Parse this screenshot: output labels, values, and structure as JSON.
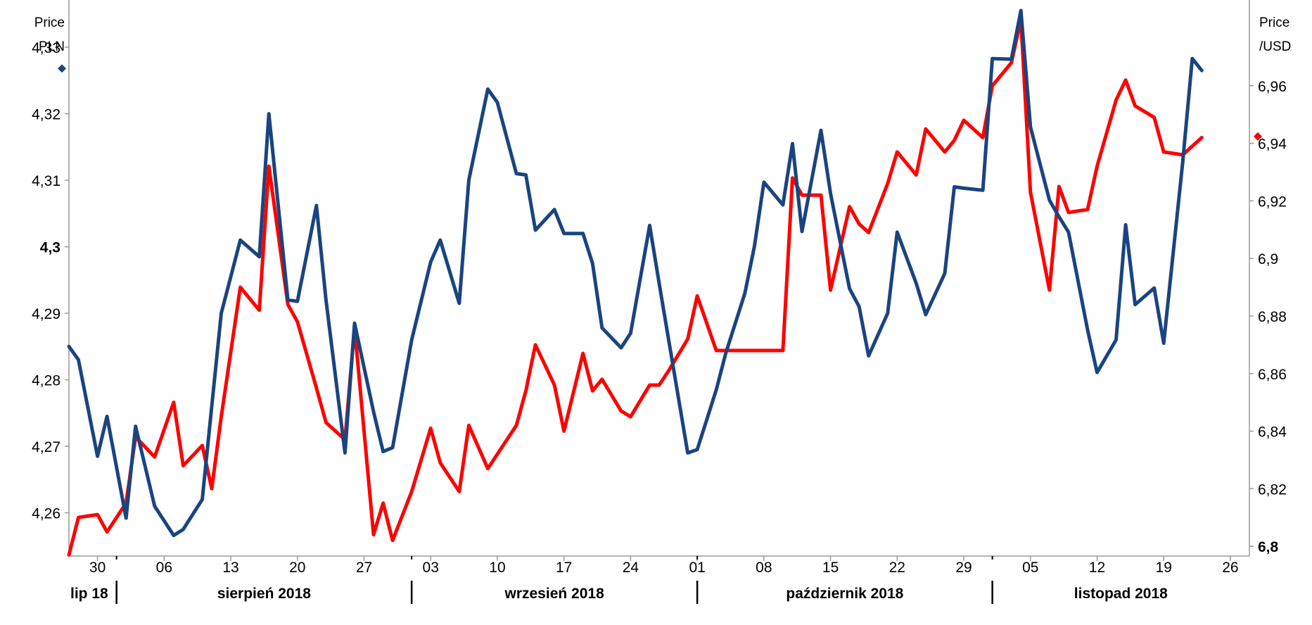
{
  "chart_data": {
    "type": "line",
    "left_axis": {
      "title_lines": [
        "Price",
        "PLN"
      ],
      "range": [
        4.2535,
        4.3371
      ],
      "ticks": [
        {
          "value": 4.26,
          "label": "4,26",
          "bold": false
        },
        {
          "value": 4.27,
          "label": "4,27",
          "bold": false
        },
        {
          "value": 4.28,
          "label": "4,28",
          "bold": false
        },
        {
          "value": 4.29,
          "label": "4,29",
          "bold": false
        },
        {
          "value": 4.3,
          "label": "4,3",
          "bold": true
        },
        {
          "value": 4.31,
          "label": "4,31",
          "bold": false
        },
        {
          "value": 4.32,
          "label": "4,32",
          "bold": false
        },
        {
          "value": 4.33,
          "label": "4,33",
          "bold": false
        }
      ]
    },
    "right_axis": {
      "title_lines": [
        "Price",
        "/USD"
      ],
      "range": [
        6.7966,
        6.9898
      ],
      "ticks": [
        {
          "value": 6.8,
          "label": "6,8",
          "bold": true
        },
        {
          "value": 6.82,
          "label": "6,82",
          "bold": false
        },
        {
          "value": 6.84,
          "label": "6,84",
          "bold": false
        },
        {
          "value": 6.86,
          "label": "6,86",
          "bold": false
        },
        {
          "value": 6.88,
          "label": "6,88",
          "bold": false
        },
        {
          "value": 6.9,
          "label": "6,9",
          "bold": false
        },
        {
          "value": 6.92,
          "label": "6,92",
          "bold": false
        },
        {
          "value": 6.94,
          "label": "6,94",
          "bold": false
        },
        {
          "value": 6.96,
          "label": "6,96",
          "bold": false
        }
      ]
    },
    "x_axis": {
      "start": "2018-07-27",
      "end": "2018-11-28",
      "day_ticks": [
        {
          "date": "2018-07-30",
          "label": "30"
        },
        {
          "date": "2018-08-06",
          "label": "06"
        },
        {
          "date": "2018-08-13",
          "label": "13"
        },
        {
          "date": "2018-08-20",
          "label": "20"
        },
        {
          "date": "2018-08-27",
          "label": "27"
        },
        {
          "date": "2018-09-03",
          "label": "03"
        },
        {
          "date": "2018-09-10",
          "label": "10"
        },
        {
          "date": "2018-09-17",
          "label": "17"
        },
        {
          "date": "2018-09-24",
          "label": "24"
        },
        {
          "date": "2018-10-01",
          "label": "01"
        },
        {
          "date": "2018-10-08",
          "label": "08"
        },
        {
          "date": "2018-10-15",
          "label": "15"
        },
        {
          "date": "2018-10-22",
          "label": "22"
        },
        {
          "date": "2018-10-29",
          "label": "29"
        },
        {
          "date": "2018-11-05",
          "label": "05"
        },
        {
          "date": "2018-11-12",
          "label": "12"
        },
        {
          "date": "2018-11-19",
          "label": "19"
        },
        {
          "date": "2018-11-26",
          "label": "26"
        }
      ],
      "month_boundaries": [
        "2018-08-01",
        "2018-09-01",
        "2018-10-01",
        "2018-11-01"
      ],
      "months": [
        {
          "label": "lip 18",
          "start": "2018-07-27",
          "end": "2018-08-01"
        },
        {
          "label": "sierpień 2018",
          "start": "2018-08-01",
          "end": "2018-09-01"
        },
        {
          "label": "wrzesień 2018",
          "start": "2018-09-01",
          "end": "2018-10-01"
        },
        {
          "label": "październik 2018",
          "start": "2018-10-01",
          "end": "2018-11-01"
        },
        {
          "label": "listopad 2018",
          "start": "2018-11-01",
          "end": "2018-11-28"
        }
      ]
    },
    "series": [
      {
        "axis": "right",
        "color": "#ff0000",
        "points": [
          [
            "2018-07-27",
            6.797
          ],
          [
            "2018-07-28",
            6.81
          ],
          [
            "2018-07-30",
            6.811
          ],
          [
            "2018-07-31",
            6.805
          ],
          [
            "2018-08-02",
            6.815
          ],
          [
            "2018-08-03",
            6.838
          ],
          [
            "2018-08-05",
            6.831
          ],
          [
            "2018-08-07",
            6.85
          ],
          [
            "2018-08-08",
            6.828
          ],
          [
            "2018-08-10",
            6.835
          ],
          [
            "2018-08-11",
            6.82
          ],
          [
            "2018-08-12",
            6.845
          ],
          [
            "2018-08-14",
            6.89
          ],
          [
            "2018-08-16",
            6.882
          ],
          [
            "2018-08-17",
            6.932
          ],
          [
            "2018-08-19",
            6.884
          ],
          [
            "2018-08-20",
            6.878
          ],
          [
            "2018-08-22",
            6.855
          ],
          [
            "2018-08-23",
            6.843
          ],
          [
            "2018-08-25",
            6.837
          ],
          [
            "2018-08-26",
            6.876
          ],
          [
            "2018-08-28",
            6.804
          ],
          [
            "2018-08-29",
            6.815
          ],
          [
            "2018-08-30",
            6.802
          ],
          [
            "2018-09-01",
            6.819
          ],
          [
            "2018-09-03",
            6.841
          ],
          [
            "2018-09-04",
            6.829
          ],
          [
            "2018-09-06",
            6.819
          ],
          [
            "2018-09-07",
            6.842
          ],
          [
            "2018-09-09",
            6.827
          ],
          [
            "2018-09-10",
            6.832
          ],
          [
            "2018-09-12",
            6.842
          ],
          [
            "2018-09-13",
            6.854
          ],
          [
            "2018-09-14",
            6.87
          ],
          [
            "2018-09-16",
            6.856
          ],
          [
            "2018-09-17",
            6.84
          ],
          [
            "2018-09-19",
            6.867
          ],
          [
            "2018-09-20",
            6.854
          ],
          [
            "2018-09-21",
            6.858
          ],
          [
            "2018-09-23",
            6.847
          ],
          [
            "2018-09-24",
            6.845
          ],
          [
            "2018-09-26",
            6.856
          ],
          [
            "2018-09-27",
            6.856
          ],
          [
            "2018-09-28",
            6.861
          ],
          [
            "2018-09-30",
            6.872
          ],
          [
            "2018-10-01",
            6.887
          ],
          [
            "2018-10-03",
            6.868
          ],
          [
            "2018-10-04",
            6.868
          ],
          [
            "2018-10-06",
            6.868
          ],
          [
            "2018-10-07",
            6.868
          ],
          [
            "2018-10-08",
            6.868
          ],
          [
            "2018-10-10",
            6.868
          ],
          [
            "2018-10-11",
            6.928
          ],
          [
            "2018-10-12",
            6.922
          ],
          [
            "2018-10-14",
            6.922
          ],
          [
            "2018-10-15",
            6.889
          ],
          [
            "2018-10-17",
            6.918
          ],
          [
            "2018-10-18",
            6.912
          ],
          [
            "2018-10-19",
            6.909
          ],
          [
            "2018-10-21",
            6.926
          ],
          [
            "2018-10-22",
            6.937
          ],
          [
            "2018-10-24",
            6.929
          ],
          [
            "2018-10-25",
            6.945
          ],
          [
            "2018-10-27",
            6.937
          ],
          [
            "2018-10-28",
            6.941
          ],
          [
            "2018-10-29",
            6.948
          ],
          [
            "2018-10-31",
            6.942
          ],
          [
            "2018-11-01",
            6.96
          ],
          [
            "2018-11-03",
            6.968
          ],
          [
            "2018-11-04",
            6.983
          ],
          [
            "2018-11-05",
            6.923
          ],
          [
            "2018-11-07",
            6.889
          ],
          [
            "2018-11-08",
            6.925
          ],
          [
            "2018-11-09",
            6.916
          ],
          [
            "2018-11-11",
            6.917
          ],
          [
            "2018-11-12",
            6.932
          ],
          [
            "2018-11-14",
            6.955
          ],
          [
            "2018-11-15",
            6.962
          ],
          [
            "2018-11-16",
            6.953
          ],
          [
            "2018-11-18",
            6.949
          ],
          [
            "2018-11-19",
            6.937
          ],
          [
            "2018-11-21",
            6.936
          ],
          [
            "2018-11-22",
            6.939
          ],
          [
            "2018-11-23",
            6.942
          ]
        ]
      },
      {
        "axis": "left",
        "color": "#1a4480",
        "points": [
          [
            "2018-07-27",
            4.285
          ],
          [
            "2018-07-28",
            4.283
          ],
          [
            "2018-07-30",
            4.2685
          ],
          [
            "2018-07-31",
            4.2745
          ],
          [
            "2018-08-02",
            4.2592
          ],
          [
            "2018-08-03",
            4.273
          ],
          [
            "2018-08-05",
            4.261
          ],
          [
            "2018-08-07",
            4.2566
          ],
          [
            "2018-08-08",
            4.2575
          ],
          [
            "2018-08-10",
            4.262
          ],
          [
            "2018-08-11",
            4.276
          ],
          [
            "2018-08-12",
            4.29
          ],
          [
            "2018-08-14",
            4.301
          ],
          [
            "2018-08-16",
            4.2985
          ],
          [
            "2018-08-17",
            4.32
          ],
          [
            "2018-08-19",
            4.292
          ],
          [
            "2018-08-20",
            4.2918
          ],
          [
            "2018-08-22",
            4.3062
          ],
          [
            "2018-08-23",
            4.292
          ],
          [
            "2018-08-25",
            4.269
          ],
          [
            "2018-08-26",
            4.2885
          ],
          [
            "2018-08-28",
            4.2752
          ],
          [
            "2018-08-29",
            4.2692
          ],
          [
            "2018-08-30",
            4.2698
          ],
          [
            "2018-09-01",
            4.286
          ],
          [
            "2018-09-03",
            4.2977
          ],
          [
            "2018-09-04",
            4.301
          ],
          [
            "2018-09-06",
            4.2915
          ],
          [
            "2018-09-07",
            4.31
          ],
          [
            "2018-09-09",
            4.3237
          ],
          [
            "2018-09-10",
            4.3217
          ],
          [
            "2018-09-12",
            4.311
          ],
          [
            "2018-09-13",
            4.3108
          ],
          [
            "2018-09-14",
            4.3025
          ],
          [
            "2018-09-16",
            4.3056
          ],
          [
            "2018-09-17",
            4.302
          ],
          [
            "2018-09-19",
            4.302
          ],
          [
            "2018-09-20",
            4.2975
          ],
          [
            "2018-09-21",
            4.2878
          ],
          [
            "2018-09-23",
            4.2848
          ],
          [
            "2018-09-24",
            4.287
          ],
          [
            "2018-09-26",
            4.3032
          ],
          [
            "2018-09-27",
            4.2945
          ],
          [
            "2018-09-28",
            4.286
          ],
          [
            "2018-09-30",
            4.269
          ],
          [
            "2018-10-01",
            4.2695
          ],
          [
            "2018-10-03",
            4.2785
          ],
          [
            "2018-10-04",
            4.284
          ],
          [
            "2018-10-06",
            4.293
          ],
          [
            "2018-10-07",
            4.3
          ],
          [
            "2018-10-08",
            4.3097
          ],
          [
            "2018-10-10",
            4.3063
          ],
          [
            "2018-10-11",
            4.3155
          ],
          [
            "2018-10-12",
            4.3023
          ],
          [
            "2018-10-14",
            4.3175
          ],
          [
            "2018-10-15",
            4.308
          ],
          [
            "2018-10-17",
            4.2937
          ],
          [
            "2018-10-18",
            4.291
          ],
          [
            "2018-10-19",
            4.2836
          ],
          [
            "2018-10-21",
            4.29
          ],
          [
            "2018-10-22",
            4.3022
          ],
          [
            "2018-10-24",
            4.2945
          ],
          [
            "2018-10-25",
            4.2898
          ],
          [
            "2018-10-27",
            4.296
          ],
          [
            "2018-10-28",
            4.309
          ],
          [
            "2018-10-29",
            4.3088
          ],
          [
            "2018-10-31",
            4.3085
          ],
          [
            "2018-11-01",
            4.3283
          ],
          [
            "2018-11-03",
            4.3282
          ],
          [
            "2018-11-04",
            4.3355
          ],
          [
            "2018-11-05",
            4.318
          ],
          [
            "2018-11-07",
            4.307
          ],
          [
            "2018-11-08",
            4.3045
          ],
          [
            "2018-11-09",
            4.3022
          ],
          [
            "2018-11-11",
            4.2875
          ],
          [
            "2018-11-12",
            4.2811
          ],
          [
            "2018-11-14",
            4.286
          ],
          [
            "2018-11-15",
            4.3033
          ],
          [
            "2018-11-16",
            4.2913
          ],
          [
            "2018-11-18",
            4.2938
          ],
          [
            "2018-11-19",
            4.2855
          ],
          [
            "2018-11-21",
            4.3128
          ],
          [
            "2018-11-22",
            4.3283
          ],
          [
            "2018-11-23",
            4.3265
          ]
        ]
      }
    ],
    "markers": [
      {
        "axis": "left",
        "value": 4.3268,
        "color": "#1a4480",
        "side": "left"
      },
      {
        "axis": "right",
        "value": 6.9424,
        "color": "#ff0000",
        "side": "right"
      }
    ]
  }
}
